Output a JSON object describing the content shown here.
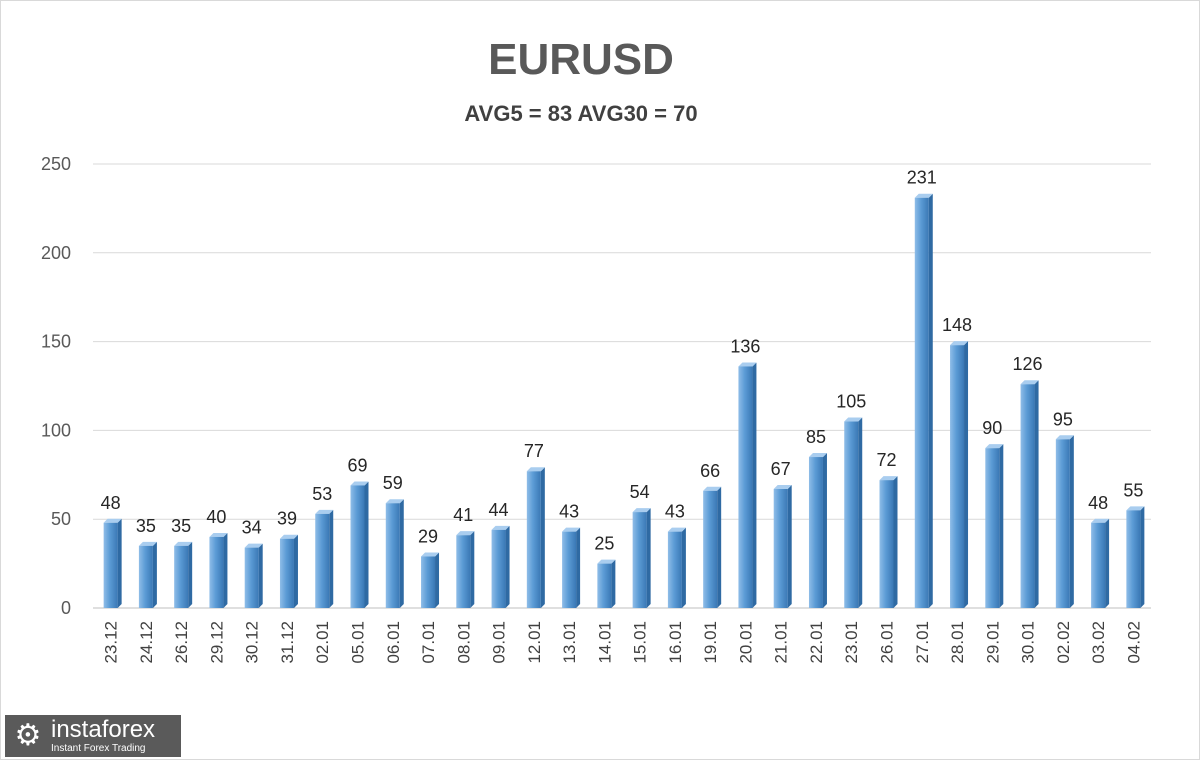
{
  "chart_data": {
    "type": "bar",
    "title": "EURUSD",
    "subtitle": "AVG5 = 83 AVG30 = 70",
    "xlabel": "",
    "ylabel": "",
    "ylim": [
      0,
      250
    ],
    "yticks": [
      0,
      50,
      100,
      150,
      200,
      250
    ],
    "grid": true,
    "legend": "none",
    "bar_color": "#5b9bd5",
    "categories": [
      "23.12",
      "24.12",
      "26.12",
      "29.12",
      "30.12",
      "31.12",
      "02.01",
      "05.01",
      "06.01",
      "07.01",
      "08.01",
      "09.01",
      "12.01",
      "13.01",
      "14.01",
      "15.01",
      "16.01",
      "19.01",
      "20.01",
      "21.01",
      "22.01",
      "23.01",
      "26.01",
      "27.01",
      "28.01",
      "29.01",
      "30.01",
      "02.02",
      "03.02",
      "04.02"
    ],
    "values": [
      48,
      35,
      35,
      40,
      34,
      39,
      53,
      69,
      59,
      29,
      41,
      44,
      77,
      43,
      25,
      54,
      43,
      66,
      136,
      67,
      85,
      105,
      72,
      231,
      148,
      90,
      126,
      95,
      48,
      55
    ]
  },
  "logo": {
    "name": "instaforex",
    "tagline": "Instant Forex Trading",
    "icon": "gear-logo-icon"
  }
}
